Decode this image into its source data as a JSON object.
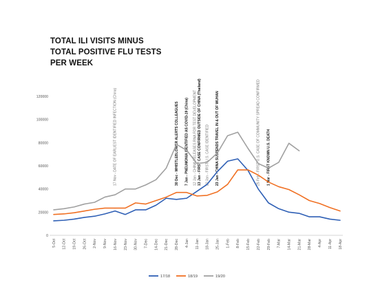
{
  "chart_data": {
    "type": "line",
    "title": "TOTAL ILI VISITS MINUS TOTAL POSITIVE FLU TESTS PER WEEK",
    "xlabel": "",
    "ylabel": "",
    "ylim": [
      0,
      120000
    ],
    "y_ticks": [
      0,
      20000,
      40000,
      60000,
      80000,
      100000,
      120000
    ],
    "grid": false,
    "legend_position": "bottom",
    "categories": [
      "5-Oct",
      "12-Oct",
      "19-Oct",
      "26-Oct",
      "2-Nov",
      "9-Nov",
      "16-Nov",
      "23-Nov",
      "30-Nov",
      "7-Dec",
      "14-Dec",
      "21-Dec",
      "28-Dec",
      "4-Jan",
      "11-Jan",
      "18-Jan",
      "25-Jan",
      "1-Feb",
      "8-Feb",
      "15-Feb",
      "22-Feb",
      "29-Feb",
      "7-Mar",
      "14-Mar",
      "21-Mar",
      "28-Mar",
      "4-Apr",
      "11-Apr",
      "18-Apr"
    ],
    "series": [
      {
        "name": "17/18",
        "color": "#2e5fb5",
        "values": [
          12500,
          13000,
          14000,
          15500,
          16500,
          18500,
          21000,
          18000,
          22000,
          22000,
          26000,
          32000,
          31000,
          32000,
          38000,
          44000,
          55000,
          64000,
          66000,
          56000,
          40000,
          28000,
          23000,
          20000,
          19000,
          16000,
          16000,
          14000,
          13000
        ]
      },
      {
        "name": "18/19",
        "color": "#f07023",
        "values": [
          18000,
          18500,
          19500,
          21000,
          22500,
          23500,
          23500,
          23500,
          28000,
          27000,
          30000,
          33000,
          37000,
          37000,
          34000,
          34500,
          37500,
          44000,
          56500,
          56500,
          52000,
          46000,
          42000,
          39500,
          35000,
          30000,
          27500,
          24000,
          21000
        ]
      },
      {
        "name": "19/20",
        "color": "#a0a0a0",
        "values": [
          22000,
          23000,
          24500,
          27000,
          28500,
          33000,
          35000,
          40000,
          40000,
          43500,
          48000,
          58000,
          78500,
          73500,
          62000,
          63000,
          71000,
          86000,
          89000,
          75000,
          62000,
          58000,
          63000,
          79500,
          73000,
          null,
          null,
          null,
          null
        ]
      }
    ],
    "annotations": [
      {
        "category": "16-Nov",
        "text": "17 Nov - DATE OF EARLIEST IDENTIFIED INFECTION (China)",
        "bold": false
      },
      {
        "category": "28-Dec",
        "text": "30 Dec - WHISTLEBLOWER ALERTS COLLEAGUES",
        "bold": true
      },
      {
        "category": "4-Jan",
        "text": "7 Jan - PNEUMONIA IDENTIFIED AS COVID-19 (China)",
        "bold": true
      },
      {
        "category": "11-Jan",
        "text": "12 Jan - CHINA RELEASES RNA FOR TEST DEVELOPMENT",
        "bold": false
      },
      {
        "category": "11-Jan",
        "text": "13 Jan - FIRST CASE CONFIRMED OUTSIDE OF CHINA (Thailand)",
        "bold": true
      },
      {
        "category": "18-Jan",
        "text": "20 Jan - FIRST U.S. CASE IDENTIFIED",
        "bold": false
      },
      {
        "category": "25-Jan",
        "text": "23 Jan - CHINA SUSPENDS TRAVEL IN & OUT OF WUHAN",
        "bold": true
      },
      {
        "category": "22-Feb",
        "text": "25 Feb - FIRST U.S. CASE OF COMMUNITY SPREAD CONFIRMED",
        "bold": false
      },
      {
        "category": "29-Feb",
        "text": "1 Mar - FIRST KNOWN U.S. DEATH",
        "bold": true
      }
    ]
  },
  "colors": {
    "axis": "#c8c8c8",
    "tick_text": "#555555",
    "annotation_bold": "#111111",
    "annotation_light": "#7a7a7a"
  }
}
